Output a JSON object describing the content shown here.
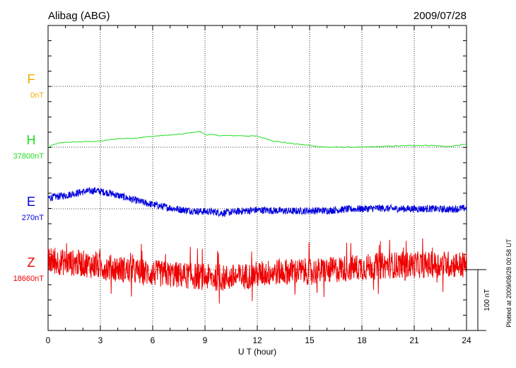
{
  "chart_data": {
    "type": "line",
    "station": "Alibag (ABG)",
    "date": "2009/07/28",
    "xlabel": "U T (hour)",
    "xlim": [
      0,
      24
    ],
    "xticks": [
      "0",
      "3",
      "6",
      "9",
      "12",
      "15",
      "18",
      "21",
      "24"
    ],
    "grid": true,
    "scale_bar": {
      "label": "100 nT",
      "value": 100
    },
    "footer": "Plotted at 2009/08/28 00:58 UT",
    "series": [
      {
        "name": "F",
        "baseline_label": "0nT",
        "color": "#f5a800",
        "x": [],
        "values": []
      },
      {
        "name": "H",
        "baseline_label": "37800nT",
        "color": "#22dd22",
        "x": [
          0,
          0.5,
          1,
          2,
          3,
          3.5,
          4,
          5,
          6,
          7,
          7.5,
          8,
          8.7,
          9,
          10,
          11,
          12,
          12.5,
          13,
          14,
          15,
          15.5,
          16,
          17,
          18,
          19,
          20,
          21,
          22,
          23,
          24
        ],
        "values": [
          0,
          6,
          8,
          9,
          10,
          12,
          14,
          15,
          18,
          20,
          21,
          23,
          26,
          21,
          19,
          19,
          18,
          14,
          10,
          6,
          3,
          1,
          0,
          0,
          0,
          1,
          2,
          3,
          3,
          1,
          5
        ]
      },
      {
        "name": "E",
        "baseline_label": "270nT",
        "color": "#0000dd",
        "x": [
          0,
          1,
          2,
          2.7,
          3.5,
          4.5,
          5.5,
          6.5,
          7.5,
          8.5,
          9.5,
          10,
          11,
          12,
          13,
          14,
          15,
          16,
          17,
          18,
          19,
          20,
          21,
          22,
          23,
          24
        ],
        "values": [
          18,
          22,
          28,
          30,
          26,
          18,
          10,
          4,
          -1,
          -4,
          -5,
          -7,
          -4,
          -2,
          -3,
          -4,
          -3,
          -3,
          -1,
          0,
          1,
          0,
          0,
          0,
          -1,
          1
        ]
      },
      {
        "name": "Z",
        "baseline_label": "18660nT",
        "color": "#ee0000",
        "x": [
          0,
          1,
          2,
          3,
          4,
          5,
          6,
          7,
          8,
          9,
          10,
          11,
          12,
          13,
          14,
          15,
          16,
          17,
          18,
          19,
          20,
          21,
          22,
          23,
          24
        ],
        "values": [
          14,
          12,
          10,
          5,
          2,
          -3,
          -6,
          -8,
          -10,
          -12,
          -14,
          -12,
          -8,
          -4,
          -3,
          -3,
          -2,
          2,
          4,
          6,
          8,
          8,
          8,
          9,
          8
        ]
      }
    ]
  }
}
